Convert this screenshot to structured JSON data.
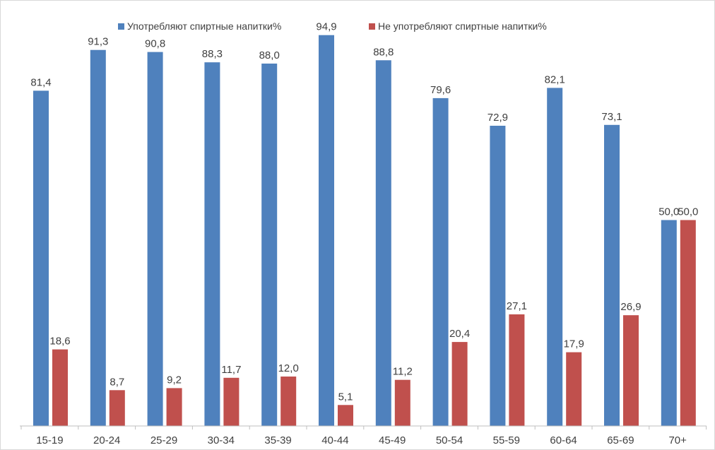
{
  "chart_data": {
    "type": "bar",
    "title": "",
    "xlabel": "",
    "ylabel": "",
    "ylim": [
      0,
      100
    ],
    "grid": false,
    "legend_position": "top",
    "categories": [
      "15-19",
      "20-24",
      "25-29",
      "30-34",
      "35-39",
      "40-44",
      "45-49",
      "50-54",
      "55-59",
      "60-64",
      "65-69",
      "70+"
    ],
    "series": [
      {
        "name": "Употребляют спиртные напитки%",
        "color": "#4f81bd",
        "values": [
          81.4,
          91.3,
          90.8,
          88.3,
          88.0,
          94.9,
          88.8,
          79.6,
          72.9,
          82.1,
          73.1,
          50.0
        ],
        "labels": [
          "81,4",
          "91,3",
          "90,8",
          "88,3",
          "88,0",
          "94,9",
          "88,8",
          "79,6",
          "72,9",
          "82,1",
          "73,1",
          "50,0"
        ]
      },
      {
        "name": "Не употребляют спиртные напитки%",
        "color": "#c0504d",
        "values": [
          18.6,
          8.7,
          9.2,
          11.7,
          12.0,
          5.1,
          11.2,
          20.4,
          27.1,
          17.9,
          26.9,
          50.0
        ],
        "labels": [
          "18,6",
          "8,7",
          "9,2",
          "11,7",
          "12,0",
          "5,1",
          "11,2",
          "20,4",
          "27,1",
          "17,9",
          "26,9",
          "50,0"
        ]
      }
    ]
  }
}
